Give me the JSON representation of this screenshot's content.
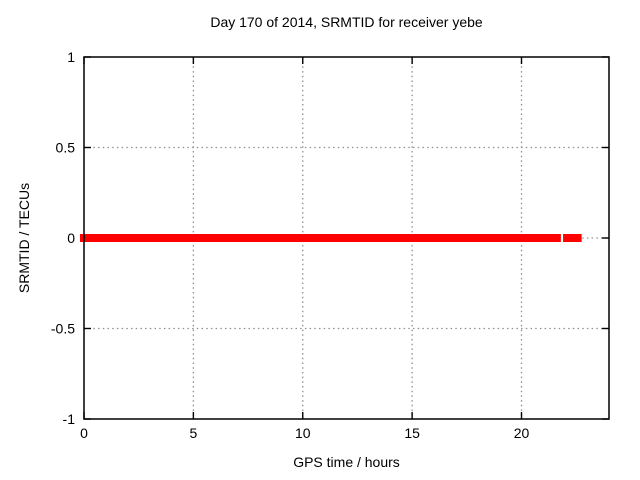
{
  "window": {
    "background": "#ffffff"
  },
  "chart_data": {
    "type": "line",
    "title": "Day 170 of 2014, SRMTID for receiver yebe",
    "xlabel": "GPS time / hours",
    "ylabel": "SRMTID / TECUs",
    "xlim": [
      0,
      24
    ],
    "ylim": [
      -1,
      1
    ],
    "xticks": [
      0,
      5,
      10,
      15,
      20
    ],
    "yticks": [
      -1,
      -0.5,
      0,
      0.5,
      1
    ],
    "grid": true,
    "grid_style": "dotted",
    "legend": "none",
    "series": [
      {
        "name": "SRMTID",
        "value_y": 0,
        "color": "#ff0000",
        "segments": [
          [
            0,
            21.8
          ],
          [
            21.9,
            22.75
          ]
        ]
      }
    ],
    "colors": {
      "line": "#ff0000",
      "grid": "#909090",
      "border": "#000000",
      "text": "#000000",
      "background": "#ffffff"
    }
  }
}
